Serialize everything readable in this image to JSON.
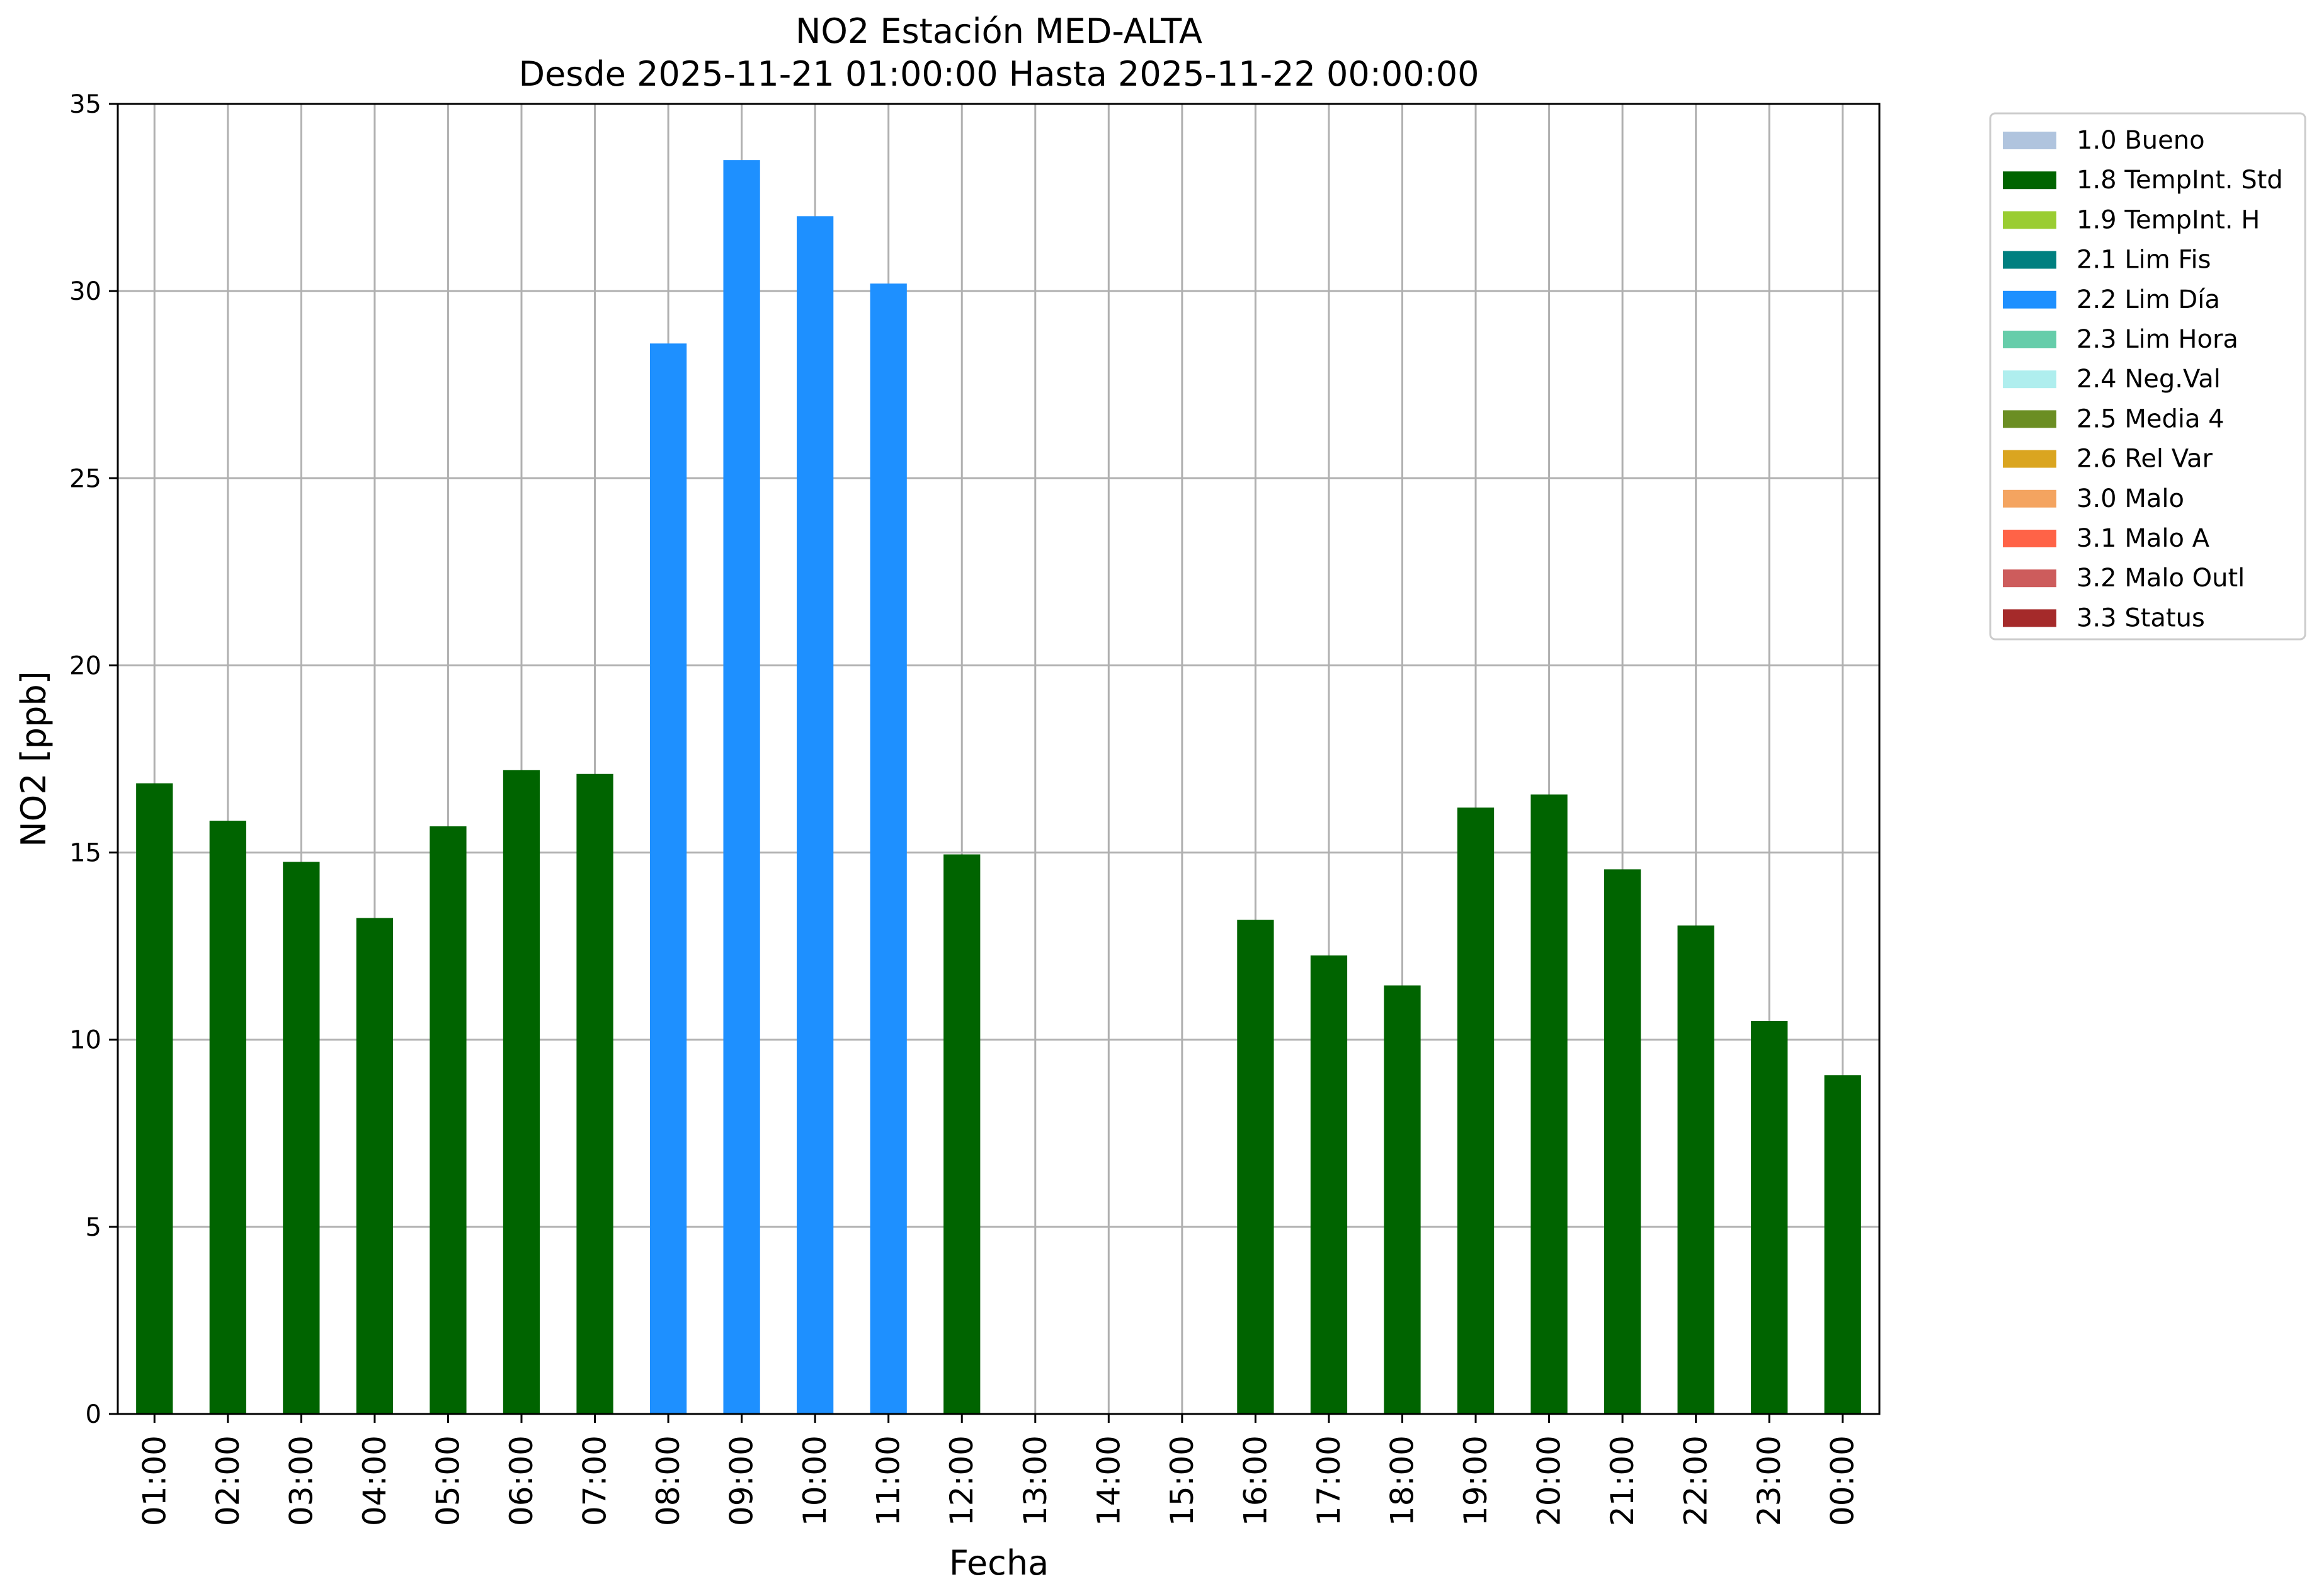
{
  "chart_data": {
    "type": "bar",
    "title": "NO2 Estación MED-ALTA",
    "subtitle": "Desde 2025-11-21 01:00:00 Hasta 2025-11-22 00:00:00",
    "xlabel": "Fecha",
    "ylabel": "NO2 [ppb]",
    "ylim": [
      0,
      35
    ],
    "yticks": [
      "0",
      "5",
      "10",
      "15",
      "20",
      "25",
      "30",
      "35"
    ],
    "grid": true,
    "legend_position": "outside-top-right",
    "categories": [
      "01:00",
      "02:00",
      "03:00",
      "04:00",
      "05:00",
      "06:00",
      "07:00",
      "08:00",
      "09:00",
      "10:00",
      "11:00",
      "12:00",
      "13:00",
      "14:00",
      "15:00",
      "16:00",
      "17:00",
      "18:00",
      "19:00",
      "20:00",
      "21:00",
      "22:00",
      "23:00",
      "00:00"
    ],
    "values": [
      16.85,
      15.85,
      14.75,
      13.25,
      15.7,
      17.2,
      17.1,
      28.6,
      33.5,
      32.0,
      30.2,
      14.95,
      null,
      null,
      null,
      13.2,
      12.25,
      11.45,
      16.2,
      16.55,
      14.55,
      13.05,
      10.5,
      9.05
    ],
    "flags": [
      "1.8",
      "1.8",
      "1.8",
      "1.8",
      "1.8",
      "1.8",
      "1.8",
      "2.2",
      "2.2",
      "2.2",
      "2.2",
      "1.8",
      null,
      null,
      null,
      "1.8",
      "1.8",
      "1.8",
      "1.8",
      "1.8",
      "1.8",
      "1.8",
      "1.8",
      "1.8"
    ],
    "legend": [
      {
        "code": "1.0",
        "label": "1.0 Bueno",
        "color": "#b0c4de"
      },
      {
        "code": "1.8",
        "label": "1.8 TempInt. Std",
        "color": "#006400"
      },
      {
        "code": "1.9",
        "label": "1.9 TempInt. H",
        "color": "#9acd32"
      },
      {
        "code": "2.1",
        "label": "2.1 Lim Fis",
        "color": "#008080"
      },
      {
        "code": "2.2",
        "label": "2.2 Lim Día",
        "color": "#1e90ff"
      },
      {
        "code": "2.3",
        "label": "2.3 Lim Hora",
        "color": "#66cdaa"
      },
      {
        "code": "2.4",
        "label": "2.4 Neg.Val",
        "color": "#afeeee"
      },
      {
        "code": "2.5",
        "label": "2.5 Media 4",
        "color": "#6b8e23"
      },
      {
        "code": "2.6",
        "label": "2.6 Rel Var",
        "color": "#daa520"
      },
      {
        "code": "3.0",
        "label": "3.0 Malo",
        "color": "#f4a460"
      },
      {
        "code": "3.1",
        "label": "3.1 Malo A",
        "color": "#ff6347"
      },
      {
        "code": "3.2",
        "label": "3.2 Malo Outl",
        "color": "#cd5c5c"
      },
      {
        "code": "3.3",
        "label": "3.3 Status",
        "color": "#a52a2a"
      }
    ]
  }
}
